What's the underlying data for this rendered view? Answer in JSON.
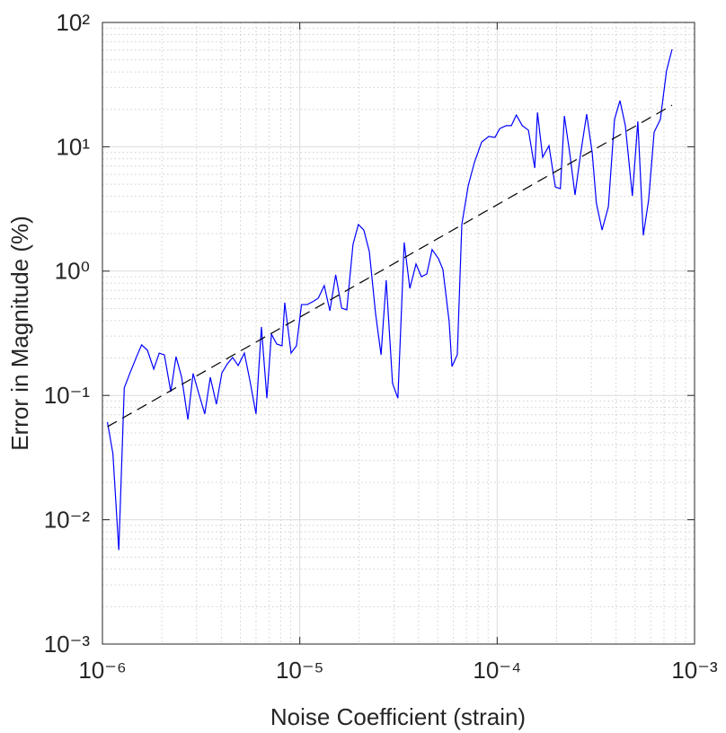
{
  "chart_data": {
    "type": "line",
    "xlabel": "Noise Coefficient (strain)",
    "ylabel": "Error in Magnitude (%)",
    "xscale": "log",
    "yscale": "log",
    "grid": true,
    "minor_grid": true,
    "xlim": [
      1e-06,
      0.001
    ],
    "ylim": [
      0.001,
      100
    ],
    "xticks": [
      {
        "value": 1e-06,
        "label": "10⁻⁶"
      },
      {
        "value": 1e-05,
        "label": "10⁻⁵"
      },
      {
        "value": 0.0001,
        "label": "10⁻⁴"
      },
      {
        "value": 0.001,
        "label": "10⁻³"
      }
    ],
    "yticks": [
      {
        "value": 0.001,
        "label": "10⁻³"
      },
      {
        "value": 0.01,
        "label": "10⁻²"
      },
      {
        "value": 0.1,
        "label": "10⁻¹"
      },
      {
        "value": 1,
        "label": "10⁰"
      },
      {
        "value": 10,
        "label": "10¹"
      },
      {
        "value": 100,
        "label": "10²"
      }
    ],
    "series": [
      {
        "color": "#0000ff",
        "linestyle": "solid",
        "x": [
          1.06e-06,
          1.13e-06,
          1.21e-06,
          1.29e-06,
          1.38e-06,
          1.49e-06,
          1.58e-06,
          1.69e-06,
          1.82e-06,
          1.94e-06,
          2.06e-06,
          2.22e-06,
          2.36e-06,
          2.52e-06,
          2.71e-06,
          2.88e-06,
          3.07e-06,
          3.3e-06,
          3.52e-06,
          3.78e-06,
          4.03e-06,
          4.3e-06,
          4.57e-06,
          4.87e-06,
          5.24e-06,
          5.58e-06,
          6e-06,
          6.39e-06,
          6.81e-06,
          7.18e-06,
          7.64e-06,
          8.13e-06,
          8.39e-06,
          9.03e-06,
          9.62e-06,
          1.02e-05,
          1.09e-05,
          1.16e-05,
          1.24e-05,
          1.33e-05,
          1.42e-05,
          1.52e-05,
          1.63e-05,
          1.73e-05,
          1.86e-05,
          1.98e-05,
          2.11e-05,
          2.25e-05,
          2.42e-05,
          2.58e-05,
          2.74e-05,
          2.95e-05,
          3.14e-05,
          3.38e-05,
          3.61e-05,
          3.88e-05,
          4.13e-05,
          4.4e-05,
          4.68e-05,
          5.04e-05,
          5.31e-05,
          5.71e-05,
          5.9e-05,
          6.28e-05,
          6.62e-05,
          7.13e-05,
          7.66e-05,
          8.34e-05,
          9.06e-05,
          9.75e-05,
          0.000103,
          0.000111,
          0.000118,
          0.000125,
          0.000134,
          0.000144,
          0.000155,
          0.00016,
          0.00017,
          0.000183,
          0.000197,
          0.000209,
          0.000219,
          0.000233,
          0.000248,
          0.000264,
          0.000284,
          0.000303,
          0.000318,
          0.00034,
          0.000366,
          0.000393,
          0.000419,
          0.000446,
          0.000484,
          0.000516,
          0.00055,
          0.000585,
          0.000624,
          0.000671,
          0.000721,
          0.000769
        ],
        "values": [
          0.061,
          0.034,
          0.0057,
          0.115,
          0.152,
          0.205,
          0.255,
          0.231,
          0.163,
          0.219,
          0.212,
          0.107,
          0.205,
          0.14,
          0.064,
          0.15,
          0.105,
          0.071,
          0.14,
          0.085,
          0.152,
          0.18,
          0.202,
          0.174,
          0.219,
          0.133,
          0.071,
          0.356,
          0.095,
          0.311,
          0.259,
          0.251,
          0.557,
          0.219,
          0.251,
          0.538,
          0.538,
          0.566,
          0.605,
          0.764,
          0.48,
          0.933,
          0.504,
          0.488,
          1.64,
          2.37,
          2.14,
          1.44,
          0.456,
          0.212,
          0.844,
          0.125,
          0.095,
          1.7,
          0.726,
          1.14,
          0.902,
          0.948,
          1.49,
          1.26,
          1.03,
          0.393,
          0.171,
          0.212,
          2.37,
          4.84,
          7.46,
          10.9,
          12.1,
          11.9,
          14.0,
          14.8,
          14.8,
          18.0,
          14.8,
          13.6,
          6.75,
          18.9,
          8.24,
          10.2,
          4.76,
          4.6,
          17.7,
          8.96,
          4.1,
          8.53,
          18.3,
          8.96,
          3.53,
          2.14,
          3.3,
          16.6,
          23.5,
          14.8,
          4.03,
          16.0,
          1.94,
          3.71,
          13.1,
          16.6,
          40.7,
          60.7
        ]
      },
      {
        "color": "#000000",
        "linestyle": "dashed",
        "x": [
          1.06e-06,
          0.000769
        ],
        "values": [
          0.056,
          21.6
        ]
      }
    ]
  }
}
